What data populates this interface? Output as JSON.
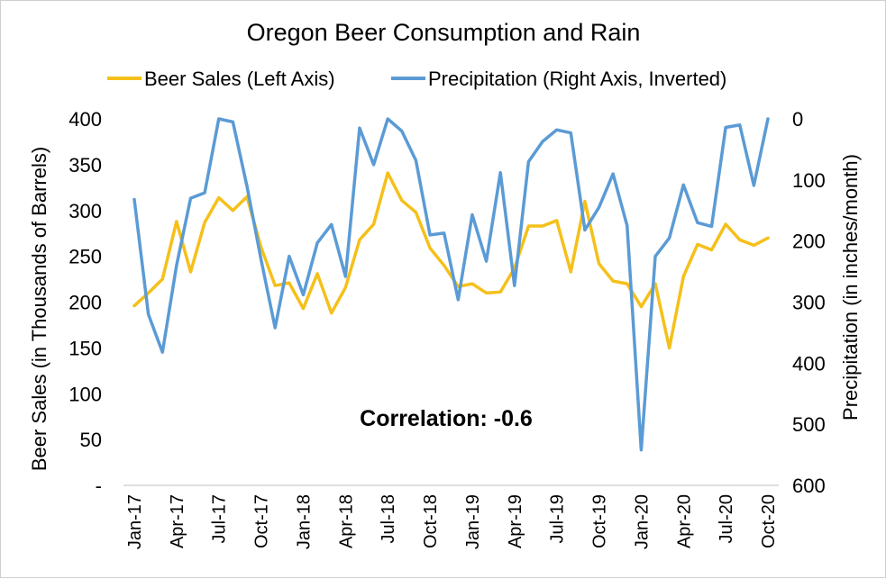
{
  "chart_data": {
    "type": "line",
    "title": "Oregon Beer Consumption and Rain",
    "annotation": "Correlation: -0.6",
    "legend_position": "top",
    "grid": false,
    "x": [
      "Jan-17",
      "Feb-17",
      "Mar-17",
      "Apr-17",
      "May-17",
      "Jun-17",
      "Jul-17",
      "Aug-17",
      "Sep-17",
      "Oct-17",
      "Nov-17",
      "Dec-17",
      "Jan-18",
      "Feb-18",
      "Mar-18",
      "Apr-18",
      "May-18",
      "Jun-18",
      "Jul-18",
      "Aug-18",
      "Sep-18",
      "Oct-18",
      "Nov-18",
      "Dec-18",
      "Jan-19",
      "Feb-19",
      "Mar-19",
      "Apr-19",
      "May-19",
      "Jun-19",
      "Jul-19",
      "Aug-19",
      "Sep-19",
      "Oct-19",
      "Nov-19",
      "Dec-19",
      "Jan-20",
      "Feb-20",
      "Mar-20",
      "Apr-20",
      "May-20",
      "Jun-20",
      "Jul-20",
      "Aug-20",
      "Sep-20",
      "Oct-20"
    ],
    "x_tick_labels": [
      "Jan-17",
      "Apr-17",
      "Jul-17",
      "Oct-17",
      "Jan-18",
      "Apr-18",
      "Jul-18",
      "Oct-18",
      "Jan-19",
      "Apr-19",
      "Jul-19",
      "Oct-19",
      "Jan-20",
      "Apr-20",
      "Jul-20",
      "Oct-20"
    ],
    "y_left": {
      "label": "Beer Sales (in Thousands of Barrels)",
      "range": [
        0,
        400
      ],
      "ticks": [
        0,
        50,
        100,
        150,
        200,
        250,
        300,
        350,
        400
      ],
      "tick_labels": [
        "-",
        "50",
        "100",
        "150",
        "200",
        "250",
        "300",
        "350",
        "400"
      ]
    },
    "y_right": {
      "label": "Precipitation (in inches/month)",
      "range": [
        0,
        600
      ],
      "inverted": true,
      "ticks": [
        0,
        100,
        200,
        300,
        400,
        500,
        600
      ],
      "tick_labels": [
        "0",
        "100",
        "200",
        "300",
        "400",
        "500",
        "600"
      ]
    },
    "series": [
      {
        "name": "Beer Sales (Left Axis)",
        "axis": "left",
        "color": "#F5C01A",
        "values": [
          196,
          210,
          225,
          288,
          233,
          287,
          314,
          300,
          315,
          260,
          218,
          221,
          193,
          231,
          188,
          216,
          268,
          285,
          341,
          311,
          298,
          259,
          240,
          217,
          220,
          210,
          211,
          237,
          283,
          283,
          289,
          233,
          310,
          242,
          223,
          220,
          195,
          220,
          150,
          228,
          263,
          257,
          285,
          268,
          262,
          270
        ]
      },
      {
        "name": "Precipitation (Right Axis, Inverted)",
        "axis": "right",
        "color": "#5B9BD5",
        "values": [
          132,
          320,
          382,
          240,
          130,
          121,
          0,
          5,
          110,
          230,
          342,
          225,
          288,
          203,
          173,
          258,
          15,
          75,
          0,
          20,
          68,
          190,
          187,
          296,
          157,
          233,
          88,
          273,
          70,
          37,
          18,
          23,
          182,
          145,
          90,
          175,
          542,
          225,
          195,
          108,
          170,
          176,
          14,
          10,
          109,
          0
        ]
      }
    ]
  }
}
